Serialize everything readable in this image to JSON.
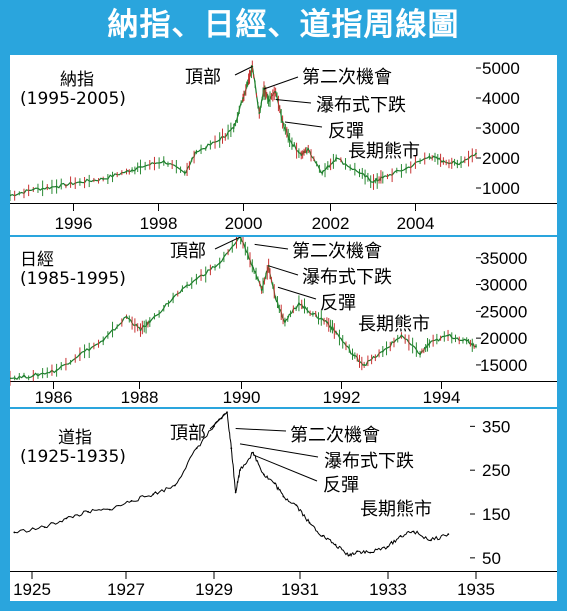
{
  "title": "納指、日經、道指周線圖",
  "chart_data": [
    {
      "type": "line",
      "name": "納指",
      "period": "(1995-2005)",
      "x_ticks": [
        "1996",
        "1998",
        "2000",
        "2002",
        "2004"
      ],
      "y_ticks": [
        1000,
        2000,
        3000,
        4000,
        5000
      ],
      "xlim": [
        1995.0,
        2005.0
      ],
      "ylim": [
        500,
        5300
      ],
      "x": [
        1995.0,
        1995.5,
        1996.0,
        1996.5,
        1997.0,
        1997.5,
        1997.8,
        1998.3,
        1998.75,
        1999.0,
        1999.5,
        1999.8,
        2000.0,
        2000.1,
        2000.2,
        2000.35,
        2000.45,
        2000.55,
        2000.7,
        2000.85,
        2001.0,
        2001.25,
        2001.4,
        2001.7,
        2002.0,
        2002.5,
        2002.8,
        2003.0,
        2003.5,
        2004.0,
        2004.3,
        2004.6,
        2005.0
      ],
      "y": [
        750,
        950,
        1050,
        1200,
        1300,
        1550,
        1700,
        1900,
        1500,
        2200,
        2600,
        3000,
        4000,
        4500,
        5050,
        3500,
        4300,
        3900,
        4200,
        3200,
        2600,
        2100,
        2300,
        1500,
        2000,
        1500,
        1200,
        1350,
        1650,
        2050,
        1900,
        1800,
        2150
      ],
      "annotations": [
        {
          "text": "頂部",
          "at": [
            2000.2,
            5050
          ]
        },
        {
          "text": "第二次機會",
          "at": [
            2000.45,
            4300
          ]
        },
        {
          "text": "瀑布式下跌",
          "at": [
            2000.7,
            3950
          ]
        },
        {
          "text": "反彈",
          "at": [
            2000.9,
            3200
          ]
        },
        {
          "text": "長期熊市",
          "at": [
            2002.9,
            1400
          ]
        }
      ]
    },
    {
      "type": "line",
      "name": "日經",
      "period": "(1985-1995)",
      "x_ticks": [
        "1986",
        "1988",
        "1990",
        "1992",
        "1994"
      ],
      "y_ticks": [
        15000,
        20000,
        25000,
        30000,
        35000
      ],
      "xlim": [
        1985.0,
        1995.0
      ],
      "ylim": [
        12000,
        38500
      ],
      "x": [
        1985.0,
        1985.5,
        1986.0,
        1986.5,
        1987.0,
        1987.5,
        1987.8,
        1988.0,
        1988.5,
        1989.0,
        1989.5,
        1989.95,
        1990.2,
        1990.4,
        1990.55,
        1990.7,
        1990.9,
        1991.2,
        1991.5,
        1991.8,
        1992.0,
        1992.35,
        1992.6,
        1993.0,
        1993.4,
        1993.8,
        1994.0,
        1994.4,
        1994.8,
        1995.0
      ],
      "y": [
        12500,
        13000,
        14000,
        17000,
        19500,
        24000,
        21500,
        23000,
        27500,
        31000,
        34000,
        38900,
        33500,
        29000,
        33500,
        27500,
        23000,
        26500,
        24500,
        23000,
        21000,
        17000,
        15000,
        17500,
        20500,
        17000,
        19000,
        20500,
        19500,
        18500
      ],
      "annotations": [
        {
          "text": "頂部",
          "at": [
            1989.95,
            38900
          ]
        },
        {
          "text": "第二次機會",
          "at": [
            1990.25,
            37500
          ]
        },
        {
          "text": "瀑布式下跌",
          "at": [
            1990.55,
            33500
          ]
        },
        {
          "text": "反彈",
          "at": [
            1990.75,
            29500
          ]
        },
        {
          "text": "長期熊市",
          "at": [
            1992.3,
            21000
          ]
        }
      ]
    },
    {
      "type": "line",
      "name": "道指",
      "period": "(1925-1935)",
      "x_ticks": [
        "1925",
        "1927",
        "1929",
        "1931",
        "1933",
        "1935"
      ],
      "y_ticks": [
        50,
        150,
        250,
        350
      ],
      "xlim": [
        1924.7,
        1935.3
      ],
      "ylim": [
        20,
        385
      ],
      "x": [
        1924.8,
        1925.5,
        1926.0,
        1926.5,
        1927.0,
        1927.5,
        1928.0,
        1928.5,
        1929.0,
        1929.4,
        1929.7,
        1929.8,
        1929.9,
        1930.0,
        1930.3,
        1930.55,
        1930.8,
        1931.0,
        1931.3,
        1931.6,
        1931.9,
        1932.2,
        1932.5,
        1932.7,
        1933.0,
        1933.4,
        1933.7,
        1934.0,
        1934.4,
        1934.8
      ],
      "y": [
        108,
        120,
        140,
        155,
        160,
        180,
        195,
        215,
        300,
        350,
        382,
        300,
        200,
        250,
        290,
        240,
        220,
        190,
        170,
        130,
        100,
        80,
        55,
        65,
        62,
        75,
        100,
        110,
        90,
        104
      ],
      "annotations": [
        {
          "text": "頂部",
          "at": [
            1929.7,
            382
          ]
        },
        {
          "text": "第二次機會",
          "at": [
            1929.9,
            345
          ]
        },
        {
          "text": "瀑布式下跌",
          "at": [
            1930.0,
            310
          ]
        },
        {
          "text": "反彈",
          "at": [
            1930.3,
            285
          ]
        },
        {
          "text": "長期熊市",
          "at": [
            1931.5,
            180
          ]
        }
      ]
    }
  ]
}
